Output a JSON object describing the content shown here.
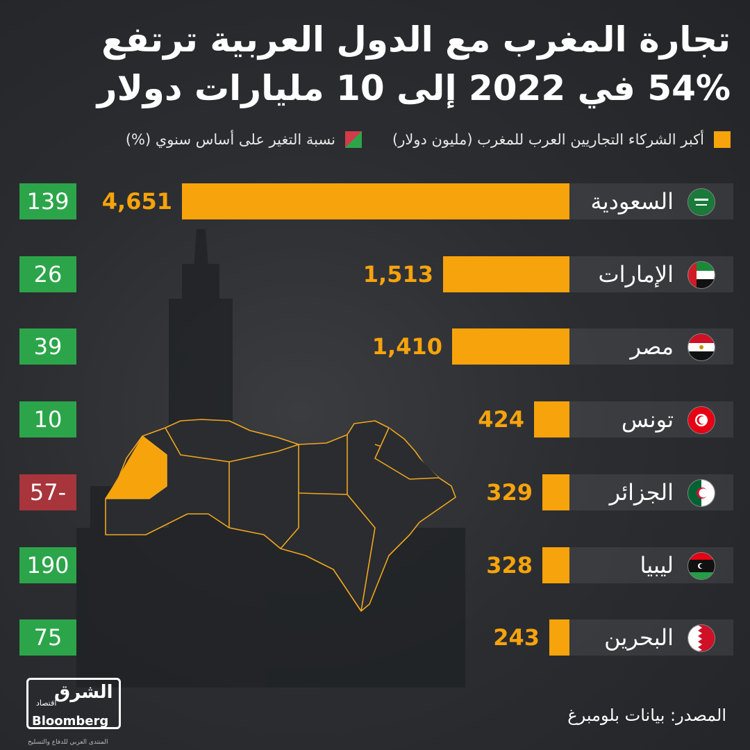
{
  "title": {
    "line1": "تجارة المغرب مع الدول العربية ترتفع",
    "line2": "54% في 2022 إلى 10 مليارات دولار"
  },
  "legend": {
    "trade_label": "أكبر الشركاء التجاريين العرب للمغرب (مليون دولار)",
    "change_label": "نسبة التغير على أساس سنوي (%)"
  },
  "colors": {
    "bar": "#f7a30b",
    "positive": "#2ca54a",
    "negative": "#a8343c"
  },
  "chart_data": {
    "type": "bar",
    "orientation": "horizontal",
    "title": "تجارة المغرب مع الدول العربية ترتفع 54% في 2022 إلى 10 مليارات دولار",
    "categories": [
      "السعودية",
      "الإمارات",
      "مصر",
      "تونس",
      "الجزائر",
      "ليبيا",
      "البحرين"
    ],
    "series": [
      {
        "name": "أكبر الشركاء التجاريين العرب للمغرب (مليون دولار)",
        "values": [
          4651,
          1513,
          1410,
          424,
          329,
          328,
          243
        ],
        "labels": [
          "4,651",
          "1,513",
          "1,410",
          "424",
          "329",
          "328",
          "243"
        ]
      },
      {
        "name": "نسبة التغير على أساس سنوي (%)",
        "values": [
          139,
          26,
          39,
          10,
          -57,
          190,
          75
        ],
        "labels": [
          "139",
          "26",
          "39",
          "10",
          "57-",
          "190",
          "75"
        ]
      }
    ],
    "flags": [
      "saudi-flag-icon",
      "uae-flag-icon",
      "egypt-flag-icon",
      "tunisia-flag-icon",
      "algeria-flag-icon",
      "libya-flag-icon",
      "bahrain-flag-icon"
    ]
  },
  "footer": {
    "source": "المصدر: بيانات بلومبرغ",
    "logo_ar": "الشرق",
    "logo_sub": "اقتصاد",
    "logo_with": "مع",
    "logo_bloomberg": "Bloomberg",
    "watermark": "المنتدى العربي للدفاع والتسليح"
  }
}
